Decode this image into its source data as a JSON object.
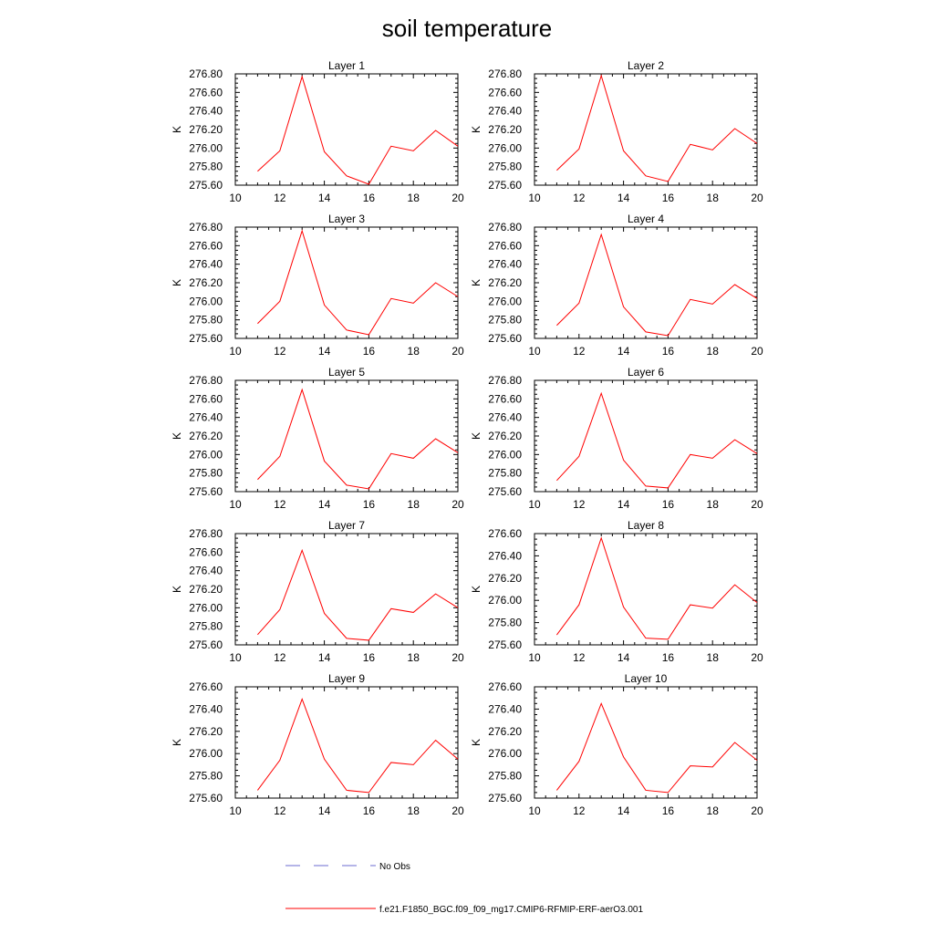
{
  "chart_data": {
    "type": "line",
    "title": "soil temperature",
    "ylabel": "K",
    "xlim": [
      10,
      20
    ],
    "x_ticks": [
      10,
      12,
      14,
      16,
      18,
      20
    ],
    "x": [
      11,
      12,
      13,
      14,
      15,
      16,
      17,
      18,
      19,
      20
    ],
    "series_name": "f.e21.F1850_BGC.f09_f09_mg17.CMIP6-RFMIP-ERF-aerO3.001",
    "series_color": "#ff0000",
    "panels": [
      {
        "title": "Layer 1",
        "ylim": [
          275.6,
          276.8
        ],
        "y_ticks": [
          "275.60",
          "275.80",
          "276.00",
          "276.20",
          "276.40",
          "276.60",
          "276.80"
        ],
        "values": [
          275.75,
          275.97,
          276.77,
          275.96,
          275.7,
          275.61,
          276.02,
          275.97,
          276.19,
          276.02
        ]
      },
      {
        "title": "Layer 2",
        "ylim": [
          275.6,
          276.8
        ],
        "y_ticks": [
          "275.60",
          "275.80",
          "276.00",
          "276.20",
          "276.40",
          "276.60",
          "276.80"
        ],
        "values": [
          275.76,
          275.99,
          276.78,
          275.97,
          275.7,
          275.64,
          276.04,
          275.98,
          276.21,
          276.05
        ]
      },
      {
        "title": "Layer 3",
        "ylim": [
          275.6,
          276.8
        ],
        "y_ticks": [
          "275.60",
          "275.80",
          "276.00",
          "276.20",
          "276.40",
          "276.60",
          "276.80"
        ],
        "values": [
          275.76,
          276.0,
          276.76,
          275.96,
          275.69,
          275.64,
          276.03,
          275.98,
          276.2,
          276.05
        ]
      },
      {
        "title": "Layer 4",
        "ylim": [
          275.6,
          276.8
        ],
        "y_ticks": [
          "275.60",
          "275.80",
          "276.00",
          "276.20",
          "276.40",
          "276.60",
          "276.80"
        ],
        "values": [
          275.74,
          275.98,
          276.72,
          275.94,
          275.67,
          275.63,
          276.02,
          275.97,
          276.18,
          276.03
        ]
      },
      {
        "title": "Layer 5",
        "ylim": [
          275.6,
          276.8
        ],
        "y_ticks": [
          "275.60",
          "275.80",
          "276.00",
          "276.20",
          "276.40",
          "276.60",
          "276.80"
        ],
        "values": [
          275.73,
          275.98,
          276.7,
          275.93,
          275.67,
          275.63,
          276.01,
          275.96,
          276.17,
          276.02
        ]
      },
      {
        "title": "Layer 6",
        "ylim": [
          275.6,
          276.8
        ],
        "y_ticks": [
          "275.60",
          "275.80",
          "276.00",
          "276.20",
          "276.40",
          "276.60",
          "276.80"
        ],
        "values": [
          275.72,
          275.98,
          276.66,
          275.94,
          275.66,
          275.64,
          276.0,
          275.96,
          276.16,
          276.01
        ]
      },
      {
        "title": "Layer 7",
        "ylim": [
          275.6,
          276.8
        ],
        "y_ticks": [
          "275.60",
          "275.80",
          "276.00",
          "276.20",
          "276.40",
          "276.60",
          "276.80"
        ],
        "values": [
          275.71,
          275.98,
          276.62,
          275.94,
          275.67,
          275.65,
          275.99,
          275.95,
          276.15,
          276.0
        ]
      },
      {
        "title": "Layer 8",
        "ylim": [
          275.6,
          276.6
        ],
        "y_ticks": [
          "275.60",
          "275.80",
          "276.00",
          "276.20",
          "276.40",
          "276.60"
        ],
        "values": [
          275.69,
          275.96,
          276.56,
          275.94,
          275.66,
          275.65,
          275.96,
          275.93,
          276.14,
          275.98
        ]
      },
      {
        "title": "Layer 9",
        "ylim": [
          275.6,
          276.6
        ],
        "y_ticks": [
          "275.60",
          "275.80",
          "276.00",
          "276.20",
          "276.40",
          "276.60"
        ],
        "values": [
          275.67,
          275.94,
          276.49,
          275.95,
          275.67,
          275.65,
          275.92,
          275.9,
          276.12,
          275.95
        ]
      },
      {
        "title": "Layer 10",
        "ylim": [
          275.6,
          276.6
        ],
        "y_ticks": [
          "275.60",
          "275.80",
          "276.00",
          "276.20",
          "276.40",
          "276.60"
        ],
        "values": [
          275.67,
          275.93,
          276.45,
          275.97,
          275.67,
          275.65,
          275.89,
          275.88,
          276.1,
          275.94
        ]
      }
    ],
    "legend": [
      {
        "label": "No Obs",
        "style": "dashed",
        "color": "#6b6bd0"
      },
      {
        "label": "f.e21.F1850_BGC.f09_f09_mg17.CMIP6-RFMIP-ERF-aerO3.001",
        "style": "solid",
        "color": "#ff0000"
      }
    ]
  }
}
